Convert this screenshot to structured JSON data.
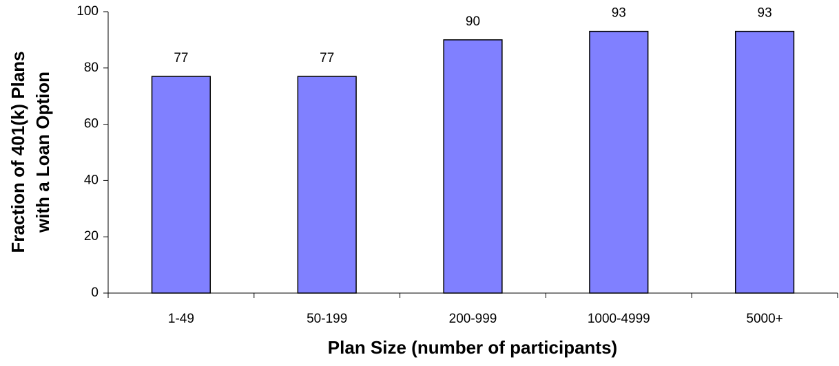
{
  "chart_data": {
    "type": "bar",
    "xlabel": "Plan Size (number of participants)",
    "ylabel": [
      "Fraction of 401(k) Plans",
      "with a Loan Option"
    ],
    "categories": [
      "1-49",
      "50-199",
      "200-999",
      "1000-4999",
      "5000+"
    ],
    "values": [
      77,
      77,
      90,
      93,
      93
    ],
    "color": "#8080ff",
    "ylim": [
      0,
      100
    ],
    "yticks": [
      0,
      20,
      40,
      60,
      80,
      100
    ],
    "grid": false
  }
}
